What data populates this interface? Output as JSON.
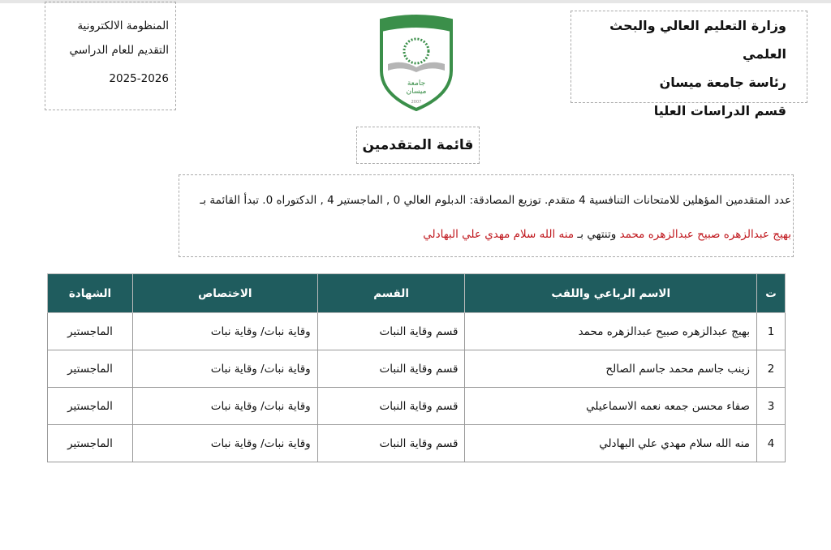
{
  "header_right": [
    "وزارة التعليم العالي والبحث العلمي",
    "رئاسة جامعة ميسان",
    "قسم الدراسات العليا"
  ],
  "header_left": [
    "المنظومة الالكترونية",
    "التقديم للعام الدراسي",
    "2025-2026"
  ],
  "logo": {
    "text": "جامعة ميسان",
    "year": "2007",
    "colors": {
      "green": "#3b8f4a",
      "grey": "#b5b5b5"
    }
  },
  "title": "قائمة المتقدمين",
  "summary": {
    "line1": "عدد المتقدمين المؤهلين للامتحانات التنافسية 4 متقدم. توزيع المصادقة: الدبلوم العالي 0 , الماجستير 4 , الدكتوراه 0. تبدأ القائمة بـ ",
    "first_name": "بهيج عبدالزهره صبيح عبدالزهره محمد",
    "middle": " وتنتهي بـ ",
    "last_name": "منه الله سلام مهدي علي البهادلي"
  },
  "table": {
    "header_color": "#1f5c5e",
    "columns": [
      "ت",
      "الاسم الرباعي واللقب",
      "القسم",
      "الاختصاص",
      "الشهادة"
    ],
    "rows": [
      [
        "1",
        "بهيج عبدالزهره صبيح عبدالزهره محمد",
        "قسم وقاية النبات",
        "وقاية نبات/ وقاية نبات",
        "الماجستير"
      ],
      [
        "2",
        "زينب جاسم محمد جاسم الصالح",
        "قسم وقاية النبات",
        "وقاية نبات/ وقاية نبات",
        "الماجستير"
      ],
      [
        "3",
        "صفاء محسن جمعه نعمه الاسماعيلي",
        "قسم وقاية النبات",
        "وقاية نبات/ وقاية نبات",
        "الماجستير"
      ],
      [
        "4",
        "منه الله سلام مهدي علي البهادلي",
        "قسم وقاية النبات",
        "وقاية نبات/ وقاية نبات",
        "الماجستير"
      ]
    ]
  }
}
